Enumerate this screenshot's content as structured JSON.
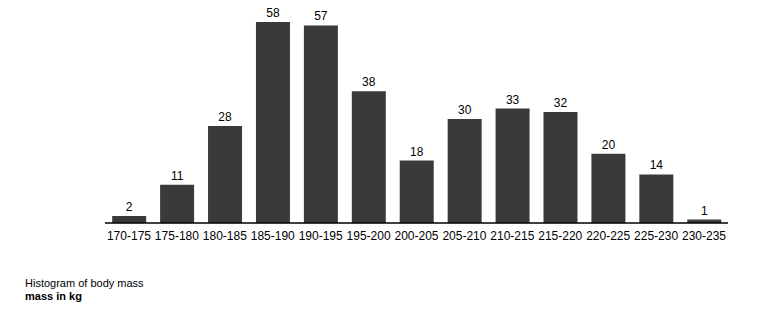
{
  "chart_data": {
    "type": "bar",
    "title": "Histogram of body mass",
    "x_label": "mass in kg",
    "categories": [
      "170-175",
      "175-180",
      "180-185",
      "185-190",
      "190-195",
      "195-200",
      "200-205",
      "205-210",
      "210-215",
      "215-220",
      "220-225",
      "225-230",
      "230-235"
    ],
    "values": [
      2,
      11,
      28,
      58,
      57,
      38,
      18,
      30,
      33,
      32,
      20,
      14,
      1
    ],
    "color": "#3a3a3a",
    "data_labels": true,
    "tick_labels": "x",
    "grid": false
  }
}
